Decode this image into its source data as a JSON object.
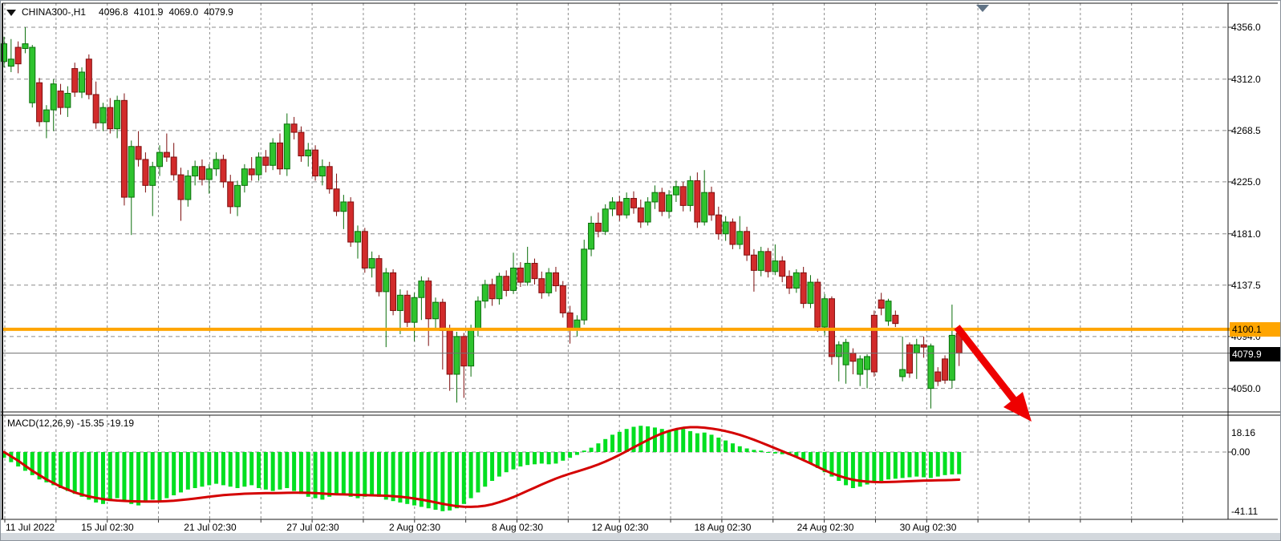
{
  "header": {
    "symbol": "CHINA300-,H1",
    "open": "4096.8",
    "high": "4101.9",
    "low": "4069.0",
    "close": "4079.9"
  },
  "macd": {
    "label": "MACD(12,26,9) -15.35 -19.19"
  },
  "annotations": {
    "hline_label": "4100.1",
    "current_price_label": "4079.9"
  },
  "colors": {
    "bull": "#2ec32e",
    "bull_border": "#0a6e0a",
    "bear": "#d22b2b",
    "bear_border": "#7e0e0e",
    "hist": "#00df20",
    "signal": "#d40000",
    "hline": "#ffa500",
    "current_line": "#6f6f6f",
    "arrow": "#ee0000",
    "grid": "#8c8c8c",
    "marker": "#5f7285",
    "frame": "#1a1a1a"
  },
  "chart_data": {
    "type": "candlestick",
    "title": "CHINA300-,H1 4096.8 4101.9 4069.0 4079.9",
    "price_axis_labels": [
      4356.0,
      4312.0,
      4268.5,
      4225.0,
      4181.0,
      4137.5,
      4094.0,
      4050.0
    ],
    "macd_axis_labels": [
      "18.16",
      "0.00",
      "-41.11"
    ],
    "time_labels": [
      "11 Jul 2022",
      "15 Jul 02:30",
      "21 Jul 02:30",
      "27 Jul 02:30",
      "2 Aug 02:30",
      "8 Aug 02:30",
      "12 Aug 02:30",
      "18 Aug 02:30",
      "24 Aug 02:30",
      "30 Aug 02:30"
    ],
    "horizontal_line_price": 4100.1,
    "current_price": 4079.9,
    "trend_arrow": "red arrow drawn from last candle near 4100 pointing down-right below 4050",
    "candles": [
      [
        4327,
        4348,
        4322,
        4342
      ],
      [
        4323,
        4346,
        4318,
        4329
      ],
      [
        4339,
        4344,
        4317,
        4325
      ],
      [
        4338,
        4356,
        4334,
        4342
      ],
      [
        4292,
        4341,
        4288,
        4339
      ],
      [
        4309,
        4313,
        4272,
        4276
      ],
      [
        4276,
        4290,
        4262,
        4286
      ],
      [
        4286,
        4312,
        4268,
        4308
      ],
      [
        4302,
        4308,
        4282,
        4288
      ],
      [
        4288,
        4306,
        4280,
        4300
      ],
      [
        4321,
        4326,
        4297,
        4301
      ],
      [
        4301,
        4322,
        4296,
        4318
      ],
      [
        4329,
        4333,
        4295,
        4299
      ],
      [
        4299,
        4310,
        4270,
        4275
      ],
      [
        4275,
        4292,
        4268,
        4288
      ],
      [
        4288,
        4296,
        4266,
        4270
      ],
      [
        4270,
        4298,
        4262,
        4294
      ],
      [
        4294,
        4300,
        4205,
        4212
      ],
      [
        4212,
        4260,
        4180,
        4255
      ],
      [
        4255,
        4268,
        4238,
        4244
      ],
      [
        4244,
        4250,
        4216,
        4222
      ],
      [
        4222,
        4242,
        4196,
        4238
      ],
      [
        4238,
        4256,
        4230,
        4250
      ],
      [
        4250,
        4266,
        4242,
        4246
      ],
      [
        4246,
        4258,
        4226,
        4231
      ],
      [
        4231,
        4237,
        4192,
        4210
      ],
      [
        4210,
        4235,
        4204,
        4230
      ],
      [
        4230,
        4243,
        4222,
        4238
      ],
      [
        4238,
        4244,
        4222,
        4227
      ],
      [
        4227,
        4240,
        4215,
        4236
      ],
      [
        4236,
        4250,
        4230,
        4244
      ],
      [
        4244,
        4248,
        4220,
        4225
      ],
      [
        4225,
        4231,
        4198,
        4204
      ],
      [
        4204,
        4226,
        4196,
        4222
      ],
      [
        4222,
        4240,
        4216,
        4236
      ],
      [
        4236,
        4246,
        4226,
        4231
      ],
      [
        4231,
        4250,
        4226,
        4246
      ],
      [
        4246,
        4252,
        4233,
        4239
      ],
      [
        4239,
        4262,
        4235,
        4258
      ],
      [
        4258,
        4266,
        4231,
        4236
      ],
      [
        4236,
        4283,
        4230,
        4274
      ],
      [
        4274,
        4280,
        4261,
        4267
      ],
      [
        4267,
        4272,
        4242,
        4247
      ],
      [
        4247,
        4258,
        4238,
        4252
      ],
      [
        4252,
        4256,
        4226,
        4230
      ],
      [
        4230,
        4244,
        4222,
        4238
      ],
      [
        4238,
        4242,
        4215,
        4219
      ],
      [
        4219,
        4232,
        4196,
        4200
      ],
      [
        4200,
        4214,
        4185,
        4208
      ],
      [
        4208,
        4212,
        4170,
        4174
      ],
      [
        4174,
        4188,
        4160,
        4183
      ],
      [
        4183,
        4186,
        4148,
        4152
      ],
      [
        4152,
        4166,
        4144,
        4160
      ],
      [
        4160,
        4163,
        4128,
        4132
      ],
      [
        4132,
        4152,
        4085,
        4148
      ],
      [
        4148,
        4151,
        4112,
        4116
      ],
      [
        4116,
        4134,
        4096,
        4129
      ],
      [
        4129,
        4133,
        4102,
        4106
      ],
      [
        4106,
        4131,
        4090,
        4127
      ],
      [
        4127,
        4145,
        4108,
        4141
      ],
      [
        4141,
        4144,
        4086,
        4109
      ],
      [
        4109,
        4127,
        4100,
        4123
      ],
      [
        4123,
        4126,
        4066,
        4099
      ],
      [
        4099,
        4104,
        4048,
        4062
      ],
      [
        4062,
        4098,
        4038,
        4094
      ],
      [
        4094,
        4097,
        4042,
        4069
      ],
      [
        4069,
        4104,
        4060,
        4100
      ],
      [
        4100,
        4128,
        4094,
        4124
      ],
      [
        4124,
        4142,
        4118,
        4138
      ],
      [
        4138,
        4143,
        4120,
        4126
      ],
      [
        4126,
        4148,
        4121,
        4145
      ],
      [
        4145,
        4150,
        4128,
        4133
      ],
      [
        4133,
        4165,
        4130,
        4152
      ],
      [
        4152,
        4157,
        4136,
        4140
      ],
      [
        4140,
        4170,
        4137,
        4156
      ],
      [
        4156,
        4160,
        4138,
        4143
      ],
      [
        4143,
        4149,
        4126,
        4131
      ],
      [
        4131,
        4152,
        4128,
        4148
      ],
      [
        4148,
        4153,
        4132,
        4137
      ],
      [
        4137,
        4141,
        4110,
        4114
      ],
      [
        4114,
        4120,
        4088,
        4100
      ],
      [
        4100,
        4112,
        4094,
        4108
      ],
      [
        4108,
        4176,
        4104,
        4168
      ],
      [
        4168,
        4196,
        4162,
        4190
      ],
      [
        4190,
        4199,
        4178,
        4183
      ],
      [
        4183,
        4206,
        4180,
        4202
      ],
      [
        4202,
        4212,
        4196,
        4208
      ],
      [
        4208,
        4213,
        4192,
        4197
      ],
      [
        4197,
        4216,
        4194,
        4211
      ],
      [
        4211,
        4217,
        4198,
        4203
      ],
      [
        4203,
        4210,
        4186,
        4191
      ],
      [
        4191,
        4212,
        4188,
        4208
      ],
      [
        4208,
        4222,
        4202,
        4216
      ],
      [
        4216,
        4220,
        4196,
        4200
      ],
      [
        4200,
        4218,
        4194,
        4214
      ],
      [
        4214,
        4226,
        4208,
        4221
      ],
      [
        4221,
        4225,
        4200,
        4205
      ],
      [
        4205,
        4230,
        4200,
        4226
      ],
      [
        4226,
        4233,
        4186,
        4191
      ],
      [
        4191,
        4235,
        4188,
        4216
      ],
      [
        4216,
        4221,
        4192,
        4197
      ],
      [
        4197,
        4204,
        4176,
        4181
      ],
      [
        4181,
        4196,
        4175,
        4191
      ],
      [
        4191,
        4194,
        4168,
        4172
      ],
      [
        4172,
        4196,
        4168,
        4183
      ],
      [
        4183,
        4187,
        4158,
        4163
      ],
      [
        4163,
        4168,
        4132,
        4150
      ],
      [
        4150,
        4170,
        4145,
        4166
      ],
      [
        4166,
        4169,
        4144,
        4149
      ],
      [
        4149,
        4172,
        4146,
        4158
      ],
      [
        4158,
        4162,
        4140,
        4145
      ],
      [
        4145,
        4150,
        4130,
        4135
      ],
      [
        4135,
        4151,
        4131,
        4148
      ],
      [
        4148,
        4153,
        4118,
        4122
      ],
      [
        4122,
        4146,
        4118,
        4140
      ],
      [
        4140,
        4143,
        4098,
        4102
      ],
      [
        4102,
        4130,
        4095,
        4126
      ],
      [
        4126,
        4128,
        4070,
        4077
      ],
      [
        4077,
        4090,
        4056,
        4087
      ],
      [
        4070,
        4092,
        4054,
        4089
      ],
      [
        4080,
        4084,
        4062,
        4073
      ],
      [
        4062,
        4078,
        4052,
        4075
      ],
      [
        4066,
        4079,
        4050,
        4077
      ],
      [
        4112,
        4116,
        4060,
        4064
      ],
      [
        4125,
        4131,
        4112,
        4118
      ],
      [
        4107,
        4126,
        4103,
        4124
      ],
      [
        4112,
        4116,
        4102,
        4105
      ],
      [
        4060,
        4094,
        4056,
        4066
      ],
      [
        4087,
        4089,
        4059,
        4063
      ],
      [
        4080,
        4092,
        4058,
        4087
      ],
      [
        4087,
        4094,
        4076,
        4085
      ],
      [
        4050,
        4088,
        4033,
        4086
      ],
      [
        4064,
        4068,
        4052,
        4056
      ],
      [
        4075,
        4078,
        4054,
        4057
      ],
      [
        4057,
        4121,
        4050,
        4095
      ],
      [
        4096.8,
        4101.9,
        4069.0,
        4079.9
      ]
    ],
    "macd_hist": [
      -4,
      -7,
      -10,
      -13,
      -16,
      -19,
      -21,
      -23,
      -25,
      -27,
      -29,
      -31,
      -33,
      -35,
      -36,
      -34,
      -32,
      -34,
      -36,
      -37,
      -35,
      -33,
      -34,
      -32,
      -30,
      -28,
      -26,
      -25,
      -24,
      -23,
      -22,
      -23,
      -24,
      -25,
      -24,
      -23,
      -25,
      -26,
      -27,
      -26,
      -25,
      -27,
      -29,
      -31,
      -32,
      -33,
      -31,
      -29,
      -30,
      -31,
      -32,
      -31,
      -30,
      -31,
      -33,
      -34,
      -35,
      -36,
      -37,
      -38,
      -39,
      -40,
      -41,
      -40.5,
      -39,
      -36,
      -32,
      -28,
      -24,
      -20,
      -17,
      -14,
      -12,
      -10,
      -9,
      -8.5,
      -8,
      -8.5,
      -8,
      -6,
      -4,
      -2,
      1,
      3,
      6,
      9,
      12,
      14,
      16,
      17.5,
      18.2,
      17.8,
      17,
      16,
      15,
      15.5,
      16,
      14.5,
      13,
      13.5,
      12,
      10,
      8,
      6,
      4,
      2.5,
      1.5,
      1,
      -0.5,
      -1,
      -1.5,
      -2,
      -3,
      -5,
      -8,
      -11,
      -14,
      -17,
      -20,
      -23,
      -25,
      -24,
      -22.5,
      -21,
      -20,
      -19,
      -18.5,
      -18,
      -17.5,
      -17,
      -17.5,
      -18,
      -17,
      -16,
      -15.5,
      -15.35
    ],
    "macd_signal": [
      0,
      -3,
      -6,
      -9.5,
      -13,
      -16,
      -19,
      -21.5,
      -24,
      -26,
      -28,
      -29.5,
      -30.8,
      -31.8,
      -32.6,
      -33.2,
      -33.6,
      -33.9,
      -34.1,
      -34.2,
      -34.3,
      -34.3,
      -34.2,
      -34,
      -33.7,
      -33.3,
      -32.8,
      -32.2,
      -31.6,
      -31,
      -30.4,
      -29.9,
      -29.5,
      -29.2,
      -28.9,
      -28.7,
      -28.6,
      -28.5,
      -28.5,
      -28.4,
      -28.3,
      -28.2,
      -28.2,
      -28.3,
      -28.5,
      -28.8,
      -29.1,
      -29.3,
      -29.4,
      -29.5,
      -29.7,
      -29.9,
      -30,
      -30.1,
      -30.3,
      -30.6,
      -31,
      -31.5,
      -32.2,
      -33,
      -33.9,
      -34.9,
      -35.9,
      -36.8,
      -37.5,
      -37.9,
      -38,
      -37.8,
      -37.2,
      -36.2,
      -34.8,
      -33.1,
      -31.2,
      -29.1,
      -26.9,
      -24.7,
      -22.5,
      -20.4,
      -18.4,
      -16.6,
      -15,
      -13.5,
      -12,
      -10.4,
      -8.6,
      -6.6,
      -4.4,
      -2,
      0.6,
      3.2,
      5.8,
      8.4,
      10.8,
      12.9,
      14.6,
      15.9,
      16.8,
      17.2,
      17.2,
      16.9,
      16.3,
      15.5,
      14.5,
      13.3,
      11.9,
      10.3,
      8.5,
      6.6,
      4.6,
      2.6,
      0.6,
      -1.4,
      -3.4,
      -5.6,
      -7.9,
      -10.3,
      -12.6,
      -14.7,
      -16.5,
      -18,
      -19.2,
      -20,
      -20.5,
      -20.8,
      -20.9,
      -20.8,
      -20.6,
      -20.4,
      -20.2,
      -20,
      -19.8,
      -19.7,
      -19.6,
      -19.5,
      -19.4,
      -19.19
    ]
  }
}
